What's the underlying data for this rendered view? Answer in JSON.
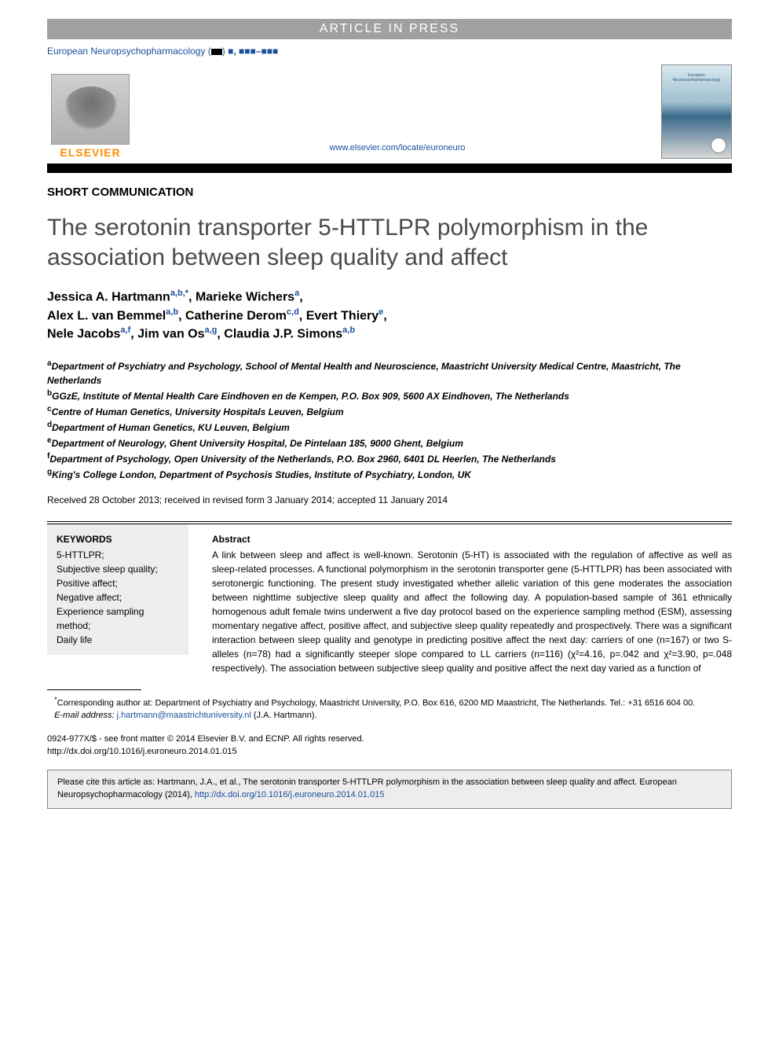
{
  "banner": "ARTICLE IN PRESS",
  "journal_line_prefix": "European Neuropsychopharmacology (",
  "journal_line_suffix": ") ",
  "publisher_name": "ELSEVIER",
  "journal_url": "www.elsevier.com/locate/euroneuro",
  "cover_title": "European Neuropsychopharmacology",
  "section_label": "SHORT COMMUNICATION",
  "title": "The serotonin transporter 5-HTTLPR polymorphism in the association between sleep quality and affect",
  "authors_html_parts": {
    "a1_name": "Jessica A. Hartmann",
    "a1_sup": "a,b,",
    "a1_star": "*",
    "a2_name": "Marieke Wichers",
    "a2_sup": "a",
    "a3_name": "Alex L. van Bemmel",
    "a3_sup": "a,b",
    "a4_name": "Catherine Derom",
    "a4_sup": "c,d",
    "a5_name": "Evert Thiery",
    "a5_sup": "e",
    "a6_name": "Nele Jacobs",
    "a6_sup": "a,f",
    "a7_name": "Jim van Os",
    "a7_sup": "a,g",
    "a8_name": "Claudia J.P. Simons",
    "a8_sup": "a,b"
  },
  "affiliations": {
    "a": "Department of Psychiatry and Psychology, School of Mental Health and Neuroscience, Maastricht University Medical Centre, Maastricht, The Netherlands",
    "b": "GGzE, Institute of Mental Health Care Eindhoven en de Kempen, P.O. Box 909, 5600 AX Eindhoven, The Netherlands",
    "c": "Centre of Human Genetics, University Hospitals Leuven, Belgium",
    "d": "Department of Human Genetics, KU Leuven, Belgium",
    "e": "Department of Neurology, Ghent University Hospital, De Pintelaan 185, 9000 Ghent, Belgium",
    "f": "Department of Psychology, Open University of the Netherlands, P.O. Box 2960, 6401 DL Heerlen, The Netherlands",
    "g": "King's College London, Department of Psychosis Studies, Institute of Psychiatry, London, UK"
  },
  "dates": "Received 28 October 2013; received in revised form 3 January 2014; accepted 11 January 2014",
  "keywords_head": "KEYWORDS",
  "keywords": [
    "5-HTTLPR;",
    "Subjective sleep quality;",
    "Positive affect;",
    "Negative affect;",
    "Experience sampling method;",
    "Daily life"
  ],
  "abstract_head": "Abstract",
  "abstract_text": "A link between sleep and affect is well-known. Serotonin (5-HT) is associated with the regulation of affective as well as sleep-related processes. A functional polymorphism in the serotonin transporter gene (5-HTTLPR) has been associated with serotonergic functioning. The present study investigated whether allelic variation of this gene moderates the association between nighttime subjective sleep quality and affect the following day. A population-based sample of 361 ethnically homogenous adult female twins underwent a five day protocol based on the experience sampling method (ESM), assessing momentary negative affect, positive affect, and subjective sleep quality repeatedly and prospectively. There was a significant interaction between sleep quality and genotype in predicting positive affect the next day: carriers of one (n=167) or two S-alleles (n=78) had a significantly steeper slope compared to LL carriers (n=116) (χ²=4.16, p=.042 and χ²=3.90, p=.048 respectively). The association between subjective sleep quality and positive affect the next day varied as a function of",
  "footnote_corr_label": "*",
  "footnote_corr_text": "Corresponding author at: Department of Psychiatry and Psychology, Maastricht University, P.O. Box 616, 6200 MD Maastricht, The Netherlands. Tel.: +31 6516 604 00.",
  "footnote_email_label": "E-mail address:",
  "footnote_email": "j.hartmann@maastrichtuniversity.nl",
  "footnote_email_paren": "(J.A. Hartmann).",
  "copyright_line1": "0924-977X/$ - see front matter © 2014 Elsevier B.V. and ECNP. All rights reserved.",
  "copyright_line2_prefix": "http://dx.doi.org/10.1016/j.euroneuro.2014.01.015",
  "cite_text_prefix": "Please cite this article as: Hartmann, J.A., et al., The serotonin transporter 5-HTTLPR polymorphism in the association between sleep quality and affect. European Neuropsychopharmacology (2014), ",
  "cite_doi": "http://dx.doi.org/10.1016/j.euroneuro.2014.01.015",
  "colors": {
    "link_blue": "#1a4f9c",
    "title_gray": "#4a4a4a",
    "banner_bg": "#a0a0a0",
    "box_bg": "#ededed",
    "elsevier_orange": "#ff8c00"
  }
}
